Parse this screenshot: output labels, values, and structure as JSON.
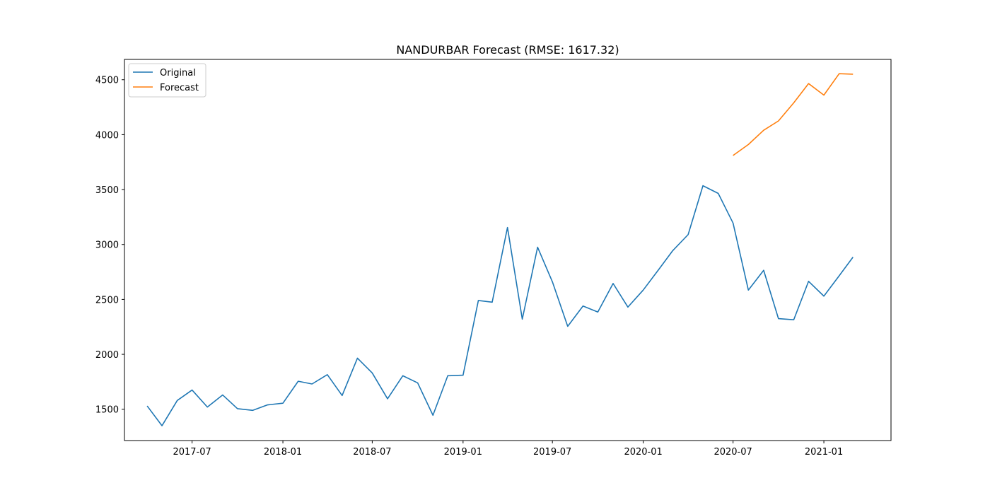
{
  "chart_data": {
    "type": "line",
    "title": "NANDURBAR Forecast (RMSE: 1617.32)",
    "xlabel": "",
    "ylabel": "",
    "ylim": [
      1215,
      4685
    ],
    "xlim": [
      "2017-02-14",
      "2021-05-17"
    ],
    "grid": false,
    "legend_position": "top-left",
    "xticks": [
      "2017-07",
      "2018-01",
      "2018-07",
      "2019-01",
      "2019-07",
      "2020-01",
      "2020-07",
      "2021-01"
    ],
    "yticks": [
      1500,
      2000,
      2500,
      3000,
      3500,
      4000,
      4500
    ],
    "series": [
      {
        "name": "Original",
        "color": "#1f77b4",
        "x": [
          "2017-04-01",
          "2017-05-01",
          "2017-06-01",
          "2017-07-01",
          "2017-08-01",
          "2017-09-01",
          "2017-10-01",
          "2017-11-01",
          "2017-12-01",
          "2018-01-01",
          "2018-02-01",
          "2018-03-01",
          "2018-04-01",
          "2018-05-01",
          "2018-06-01",
          "2018-07-01",
          "2018-08-01",
          "2018-09-01",
          "2018-10-01",
          "2018-11-01",
          "2018-12-01",
          "2019-01-01",
          "2019-02-01",
          "2019-03-01",
          "2019-04-01",
          "2019-05-01",
          "2019-06-01",
          "2019-07-01",
          "2019-08-01",
          "2019-09-01",
          "2019-10-01",
          "2019-11-01",
          "2019-12-01",
          "2020-01-01",
          "2020-02-01",
          "2020-03-01",
          "2020-04-01",
          "2020-05-01",
          "2020-06-01",
          "2020-07-01",
          "2020-08-01",
          "2020-09-01",
          "2020-10-01",
          "2020-11-01",
          "2020-12-01",
          "2021-01-01",
          "2021-02-01",
          "2021-03-01"
        ],
        "values": [
          1530,
          1350,
          1580,
          1675,
          1520,
          1630,
          1505,
          1490,
          1540,
          1555,
          1755,
          1730,
          1815,
          1625,
          1965,
          1830,
          1595,
          1805,
          1740,
          1445,
          1805,
          1810,
          2490,
          2475,
          3155,
          2320,
          2975,
          2660,
          2255,
          2440,
          2385,
          2645,
          2430,
          2585,
          2770,
          2945,
          3090,
          3535,
          3465,
          3195,
          2585,
          2765,
          2325,
          2315,
          2665,
          2530,
          2715,
          2885
        ]
      },
      {
        "name": "Forecast",
        "color": "#ff7f0e",
        "x": [
          "2020-07-01",
          "2020-08-01",
          "2020-09-01",
          "2020-10-01",
          "2020-11-01",
          "2020-12-01",
          "2021-01-01",
          "2021-02-01",
          "2021-03-01"
        ],
        "values": [
          3810,
          3910,
          4040,
          4125,
          4290,
          4465,
          4360,
          4555,
          4550
        ]
      }
    ]
  }
}
